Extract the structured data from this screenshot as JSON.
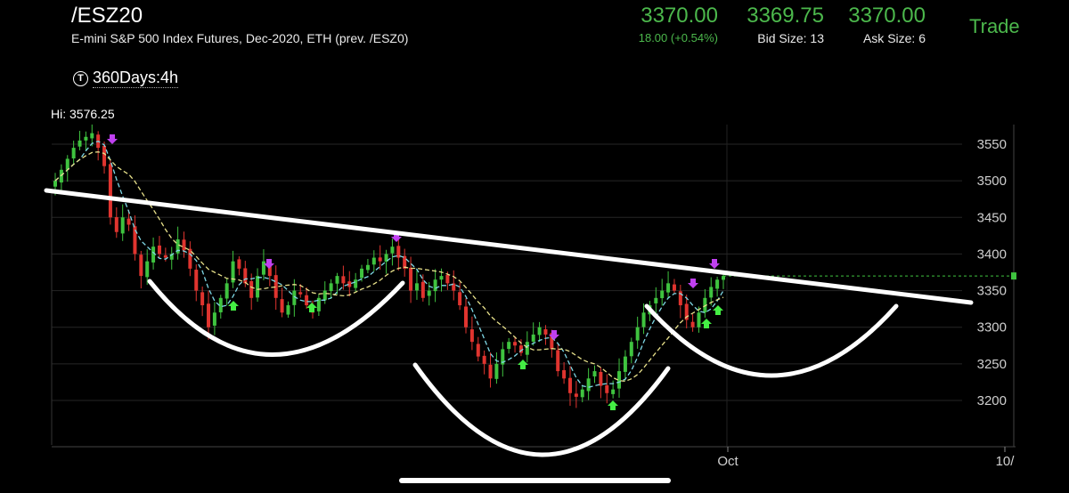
{
  "header": {
    "symbol": "/ESZ20",
    "description": "E-mini S&P 500 Index Futures, Dec-2020, ETH (prev. /ESZ0)",
    "last": "3370.00",
    "change": "18.00 (+0.54%)",
    "bid": "3369.75",
    "bid_size": "Bid Size: 13",
    "ask": "3370.00",
    "ask_size": "Ask Size: 6",
    "trade_label": "Trade"
  },
  "timeframe": {
    "icon": "T",
    "label": "360Days:4h"
  },
  "chart_data": {
    "type": "candlestick",
    "hi_label": "Hi: 3576.25",
    "y_ticks": [
      "3550",
      "3500",
      "3450",
      "3400",
      "3350",
      "3300",
      "3250",
      "3200"
    ],
    "x_ticks": [
      "Oct",
      "10/"
    ],
    "last_price": 3370,
    "colors": {
      "up": "#3fc33f",
      "down": "#e0342f",
      "ma_fast": "#7fd8e6",
      "ma_slow": "#e7e08a",
      "buy_arrow": "#44ee44",
      "sell_arrow": "#c040f0",
      "price_line": "#3fc33f"
    },
    "closes": [
      3500,
      3515,
      3530,
      3545,
      3555,
      3560,
      3565,
      3545,
      3520,
      3450,
      3430,
      3450,
      3440,
      3400,
      3370,
      3390,
      3410,
      3400,
      3395,
      3400,
      3420,
      3405,
      3380,
      3350,
      3330,
      3300,
      3320,
      3340,
      3360,
      3390,
      3380,
      3360,
      3340,
      3370,
      3390,
      3370,
      3340,
      3320,
      3330,
      3350,
      3345,
      3330,
      3320,
      3340,
      3350,
      3360,
      3370,
      3360,
      3355,
      3365,
      3380,
      3385,
      3395,
      3390,
      3400,
      3410,
      3395,
      3380,
      3350,
      3360,
      3340,
      3350,
      3365,
      3370,
      3360,
      3350,
      3330,
      3300,
      3280,
      3260,
      3250,
      3230,
      3250,
      3270,
      3280,
      3275,
      3265,
      3280,
      3290,
      3300,
      3290,
      3270,
      3240,
      3230,
      3210,
      3205,
      3215,
      3230,
      3240,
      3220,
      3210,
      3215,
      3240,
      3260,
      3280,
      3300,
      3320,
      3330,
      3340,
      3350,
      3360,
      3350,
      3330,
      3310,
      3300,
      3320,
      3340,
      3355,
      3365,
      3370
    ],
    "annotations": [
      "resistance-trendline",
      "left-cup",
      "center-cup",
      "right-cup",
      "projected-cup"
    ]
  }
}
